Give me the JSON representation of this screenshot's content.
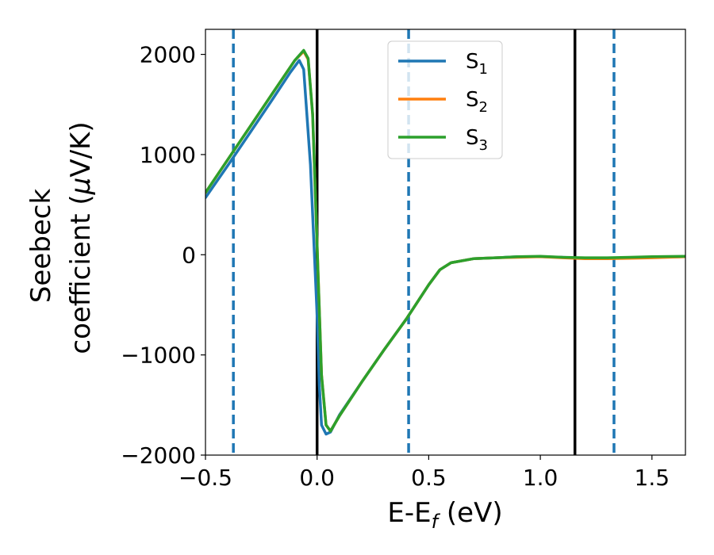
{
  "chart_data": {
    "type": "line",
    "title": "",
    "xlabel": "E-E",
    "xlabel_sub": "f",
    "xlabel_unit": " (eV)",
    "ylabel_line1": "Seebeck",
    "ylabel_line2": "coefficient  (",
    "ylabel_mu": "μ",
    "ylabel_unit": "V/K)",
    "xlim": [
      -0.5,
      1.65
    ],
    "ylim": [
      -2000,
      2250
    ],
    "xticks": [
      -0.5,
      0.0,
      0.5,
      1.0,
      1.5
    ],
    "xtick_labels": [
      "−0.5",
      "0.0",
      "0.5",
      "1.0",
      "1.5"
    ],
    "yticks": [
      -2000,
      -1000,
      0,
      1000,
      2000
    ],
    "ytick_labels": [
      "−2000",
      "−1000",
      "0",
      "1000",
      "2000"
    ],
    "grid": false,
    "legend_position": "top-center",
    "series": [
      {
        "name": "S",
        "sub": "1",
        "color": "#1f77b4",
        "x": [
          -0.5,
          -0.4,
          -0.3,
          -0.2,
          -0.12,
          -0.08,
          -0.06,
          -0.03,
          0.0,
          0.01,
          0.02,
          0.04,
          0.06,
          0.1,
          0.2,
          0.3,
          0.4,
          0.5,
          0.55,
          0.6,
          0.7,
          0.8,
          0.9,
          1.0,
          1.1,
          1.2,
          1.3,
          1.4,
          1.5,
          1.65
        ],
        "y": [
          570,
          890,
          1220,
          1550,
          1820,
          1940,
          1850,
          900,
          -600,
          -1300,
          -1700,
          -1790,
          -1770,
          -1600,
          -1270,
          -950,
          -640,
          -300,
          -150,
          -80,
          -40,
          -30,
          -20,
          -20,
          -25,
          -35,
          -35,
          -30,
          -25,
          -20
        ]
      },
      {
        "name": "S",
        "sub": "2",
        "color": "#ff7f0e",
        "x": [
          -0.5,
          -0.4,
          -0.3,
          -0.2,
          -0.1,
          -0.06,
          -0.04,
          -0.02,
          0.0,
          0.02,
          0.04,
          0.06,
          0.1,
          0.2,
          0.3,
          0.4,
          0.5,
          0.55,
          0.6,
          0.7,
          0.8,
          0.9,
          1.0,
          1.1,
          1.2,
          1.3,
          1.4,
          1.5,
          1.65
        ],
        "y": [
          620,
          950,
          1280,
          1610,
          1940,
          2030,
          1950,
          1400,
          100,
          -1200,
          -1700,
          -1760,
          -1610,
          -1270,
          -950,
          -640,
          -300,
          -150,
          -80,
          -40,
          -30,
          -25,
          -20,
          -30,
          -40,
          -40,
          -35,
          -30,
          -20
        ]
      },
      {
        "name": "S",
        "sub": "3",
        "color": "#2ca02c",
        "x": [
          -0.5,
          -0.4,
          -0.3,
          -0.2,
          -0.1,
          -0.06,
          -0.04,
          -0.02,
          0.0,
          0.02,
          0.04,
          0.06,
          0.1,
          0.2,
          0.3,
          0.4,
          0.5,
          0.55,
          0.6,
          0.7,
          0.8,
          0.9,
          1.0,
          1.1,
          1.2,
          1.3,
          1.4,
          1.5,
          1.65
        ],
        "y": [
          620,
          950,
          1280,
          1610,
          1940,
          2040,
          1960,
          1400,
          100,
          -1200,
          -1700,
          -1760,
          -1610,
          -1270,
          -950,
          -640,
          -300,
          -150,
          -80,
          -40,
          -30,
          -20,
          -15,
          -25,
          -30,
          -30,
          -25,
          -20,
          -15
        ]
      }
    ],
    "vlines": [
      {
        "x": -0.375,
        "style": "dashed",
        "color": "#1f77b4"
      },
      {
        "x": 0.0,
        "style": "solid",
        "color": "#000000"
      },
      {
        "x": 0.41,
        "style": "dashed",
        "color": "#1f77b4"
      },
      {
        "x": 1.155,
        "style": "solid",
        "color": "#000000"
      },
      {
        "x": 1.33,
        "style": "dashed",
        "color": "#1f77b4"
      }
    ]
  }
}
